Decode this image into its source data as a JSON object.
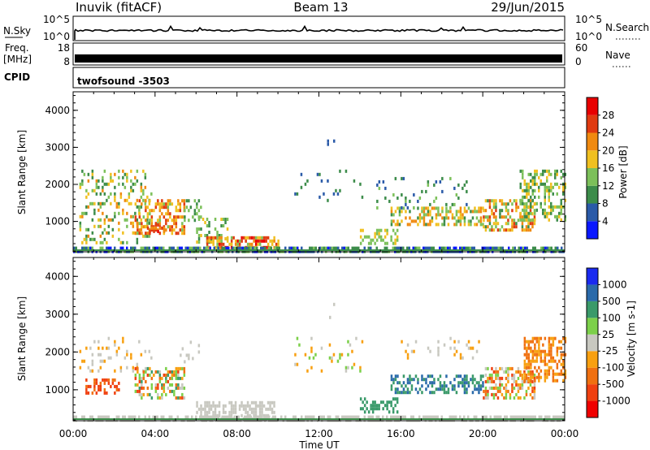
{
  "header": {
    "station": "Inuvik (fitACF)",
    "beam": "Beam 13",
    "date": "29/Jun/2015"
  },
  "strip": {
    "nsky_label": "N.Sky",
    "nsky_ticks": [
      "10^5",
      "10^0"
    ],
    "nsearch_label": "N.Search",
    "freq_label_1": "Freq.",
    "freq_label_2": "[MHz]",
    "freq_ticks": [
      "18",
      "8"
    ],
    "nave_label": "Nave",
    "nave_ticks": [
      "60",
      "0"
    ],
    "cpid_label": "CPID",
    "cpid_value": "twofsound -3503"
  },
  "colors": {
    "power": [
      "#0a18ff",
      "#2a5aa8",
      "#3c8c4a",
      "#7cc05a",
      "#f0c020",
      "#f08a10",
      "#e03a10",
      "#e80000"
    ],
    "velocity": [
      "#f00000",
      "#f04010",
      "#f07010",
      "#f8a010",
      "#c8c8c0",
      "#7cd04a",
      "#3a9a6a",
      "#2a6aaa",
      "#1a2af0"
    ]
  },
  "chart_data": [
    {
      "type": "heatmap",
      "name": "power",
      "xlabel": "",
      "ylabel": "Slant Range [km]",
      "yticks": [
        "1000",
        "2000",
        "3000",
        "4000"
      ],
      "xticks": [
        "00:00",
        "04:00",
        "08:00",
        "12:00",
        "16:00",
        "20:00",
        "00:00"
      ],
      "xlim_hours": [
        0,
        24
      ],
      "ylim_km": [
        180,
        4500
      ],
      "colorbar": {
        "label": "Power [dB]",
        "ticks": [
          "4",
          "8",
          "12",
          "16",
          "20",
          "24",
          "28"
        ],
        "range": [
          0,
          30
        ]
      },
      "echo_regions": [
        {
          "t": [
            0.3,
            3.8
          ],
          "r": [
            400,
            2400
          ],
          "dens": 0.25,
          "v": [
            8,
            22
          ]
        },
        {
          "t": [
            3.0,
            5.4
          ],
          "r": [
            700,
            1600
          ],
          "dens": 0.5,
          "v": [
            14,
            28
          ]
        },
        {
          "t": [
            3.6,
            4.4
          ],
          "r": [
            750,
            950
          ],
          "dens": 0.6,
          "v": [
            22,
            30
          ]
        },
        {
          "t": [
            5.4,
            6.2
          ],
          "r": [
            1000,
            1600
          ],
          "dens": 0.3,
          "v": [
            8,
            16
          ]
        },
        {
          "t": [
            6.0,
            7.5
          ],
          "r": [
            450,
            1100
          ],
          "dens": 0.35,
          "v": [
            8,
            20
          ]
        },
        {
          "t": [
            6.5,
            10.0
          ],
          "r": [
            250,
            600
          ],
          "dens": 0.6,
          "v": [
            14,
            30
          ]
        },
        {
          "t": [
            10.5,
            14.2
          ],
          "r": [
            1500,
            2400
          ],
          "dens": 0.05,
          "v": [
            4,
            12
          ]
        },
        {
          "t": [
            12.2,
            12.8
          ],
          "r": [
            2900,
            3300
          ],
          "dens": 0.1,
          "v": [
            4,
            8
          ]
        },
        {
          "t": [
            14.0,
            15.8
          ],
          "r": [
            400,
            800
          ],
          "dens": 0.45,
          "v": [
            12,
            18
          ]
        },
        {
          "t": [
            15.5,
            20.0
          ],
          "r": [
            900,
            1400
          ],
          "dens": 0.5,
          "v": [
            10,
            24
          ]
        },
        {
          "t": [
            14.8,
            19.5
          ],
          "r": [
            1400,
            2200
          ],
          "dens": 0.1,
          "v": [
            6,
            14
          ]
        },
        {
          "t": [
            20.0,
            22.5
          ],
          "r": [
            800,
            1600
          ],
          "dens": 0.5,
          "v": [
            10,
            26
          ]
        },
        {
          "t": [
            21.8,
            24.0
          ],
          "r": [
            1000,
            2400
          ],
          "dens": 0.45,
          "v": [
            8,
            20
          ]
        },
        {
          "t": [
            0.0,
            24.0
          ],
          "r": [
            180,
            320
          ],
          "dens": 0.7,
          "v": [
            2,
            14
          ]
        }
      ]
    },
    {
      "type": "heatmap",
      "name": "velocity",
      "xlabel": "Time UT",
      "ylabel": "Slant Range [km]",
      "yticks": [
        "1000",
        "2000",
        "3000",
        "4000"
      ],
      "xticks": [
        "00:00",
        "04:00",
        "08:00",
        "12:00",
        "16:00",
        "20:00",
        "00:00"
      ],
      "xlim_hours": [
        0,
        24
      ],
      "ylim_km": [
        180,
        4500
      ],
      "colorbar": {
        "label": "Velocity [m s-1]",
        "ticks": [
          "-1000",
          "-500",
          "-100",
          "-25",
          "25",
          "100",
          "500",
          "1000"
        ]
      },
      "echo_regions": [
        {
          "t": [
            0.6,
            2.2
          ],
          "r": [
            900,
            1300
          ],
          "dens": 0.4,
          "v": [
            1,
            3
          ]
        },
        {
          "t": [
            0.3,
            3.8
          ],
          "r": [
            1500,
            2400
          ],
          "dens": 0.15,
          "v": [
            3,
            5
          ]
        },
        {
          "t": [
            3.0,
            5.4
          ],
          "r": [
            800,
            1600
          ],
          "dens": 0.5,
          "v": [
            1,
            7
          ]
        },
        {
          "t": [
            5.2,
            6.2
          ],
          "r": [
            1700,
            2300
          ],
          "dens": 0.2,
          "v": [
            4,
            4
          ]
        },
        {
          "t": [
            6.0,
            9.8
          ],
          "r": [
            250,
            700
          ],
          "dens": 0.6,
          "v": [
            4,
            4
          ]
        },
        {
          "t": [
            10.5,
            14.2
          ],
          "r": [
            1500,
            2400
          ],
          "dens": 0.05,
          "v": [
            3,
            6
          ]
        },
        {
          "t": [
            12.2,
            12.8
          ],
          "r": [
            2900,
            3300
          ],
          "dens": 0.1,
          "v": [
            4,
            4
          ]
        },
        {
          "t": [
            14.0,
            15.8
          ],
          "r": [
            400,
            800
          ],
          "dens": 0.45,
          "v": [
            6,
            6
          ]
        },
        {
          "t": [
            15.5,
            20.0
          ],
          "r": [
            900,
            1400
          ],
          "dens": 0.5,
          "v": [
            6,
            8
          ]
        },
        {
          "t": [
            16.0,
            20.0
          ],
          "r": [
            1800,
            2400
          ],
          "dens": 0.12,
          "v": [
            3,
            5
          ]
        },
        {
          "t": [
            20.0,
            22.5
          ],
          "r": [
            800,
            1600
          ],
          "dens": 0.5,
          "v": [
            1,
            6
          ]
        },
        {
          "t": [
            22.0,
            24.0
          ],
          "r": [
            1200,
            2400
          ],
          "dens": 0.5,
          "v": [
            2,
            4
          ]
        },
        {
          "t": [
            0.0,
            24.0
          ],
          "r": [
            180,
            320
          ],
          "dens": 0.7,
          "v": [
            4,
            5
          ]
        }
      ]
    }
  ]
}
